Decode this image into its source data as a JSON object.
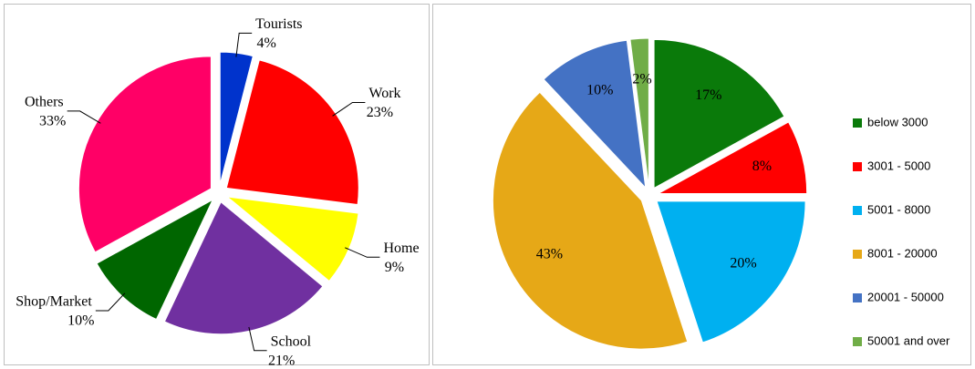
{
  "chart_data": [
    {
      "type": "pie",
      "categories": [
        "Tourists",
        "Work",
        "Home",
        "School",
        "Shop/Market",
        "Others"
      ],
      "values": [
        4,
        23,
        9,
        21,
        10,
        33
      ],
      "value_labels": [
        "4%",
        "23%",
        "9%",
        "21%",
        "10%",
        "33%"
      ],
      "colors": [
        "#0033cc",
        "#ff0000",
        "#ffff00",
        "#7030a0",
        "#006600",
        "#ff0066"
      ]
    },
    {
      "type": "pie",
      "categories": [
        "below 3000",
        "3001 - 5000",
        "5001 - 8000",
        "8001 - 20000",
        "20001 - 50000",
        "50001 and over"
      ],
      "values": [
        17,
        8,
        20,
        43,
        10,
        2
      ],
      "value_labels": [
        "17%",
        "8%",
        "20%",
        "43%",
        "10%",
        "2%"
      ],
      "colors": [
        "#0a7a0a",
        "#ff0000",
        "#00b0f0",
        "#e6a817",
        "#4472c4",
        "#70ad47"
      ],
      "legend": "right"
    }
  ]
}
